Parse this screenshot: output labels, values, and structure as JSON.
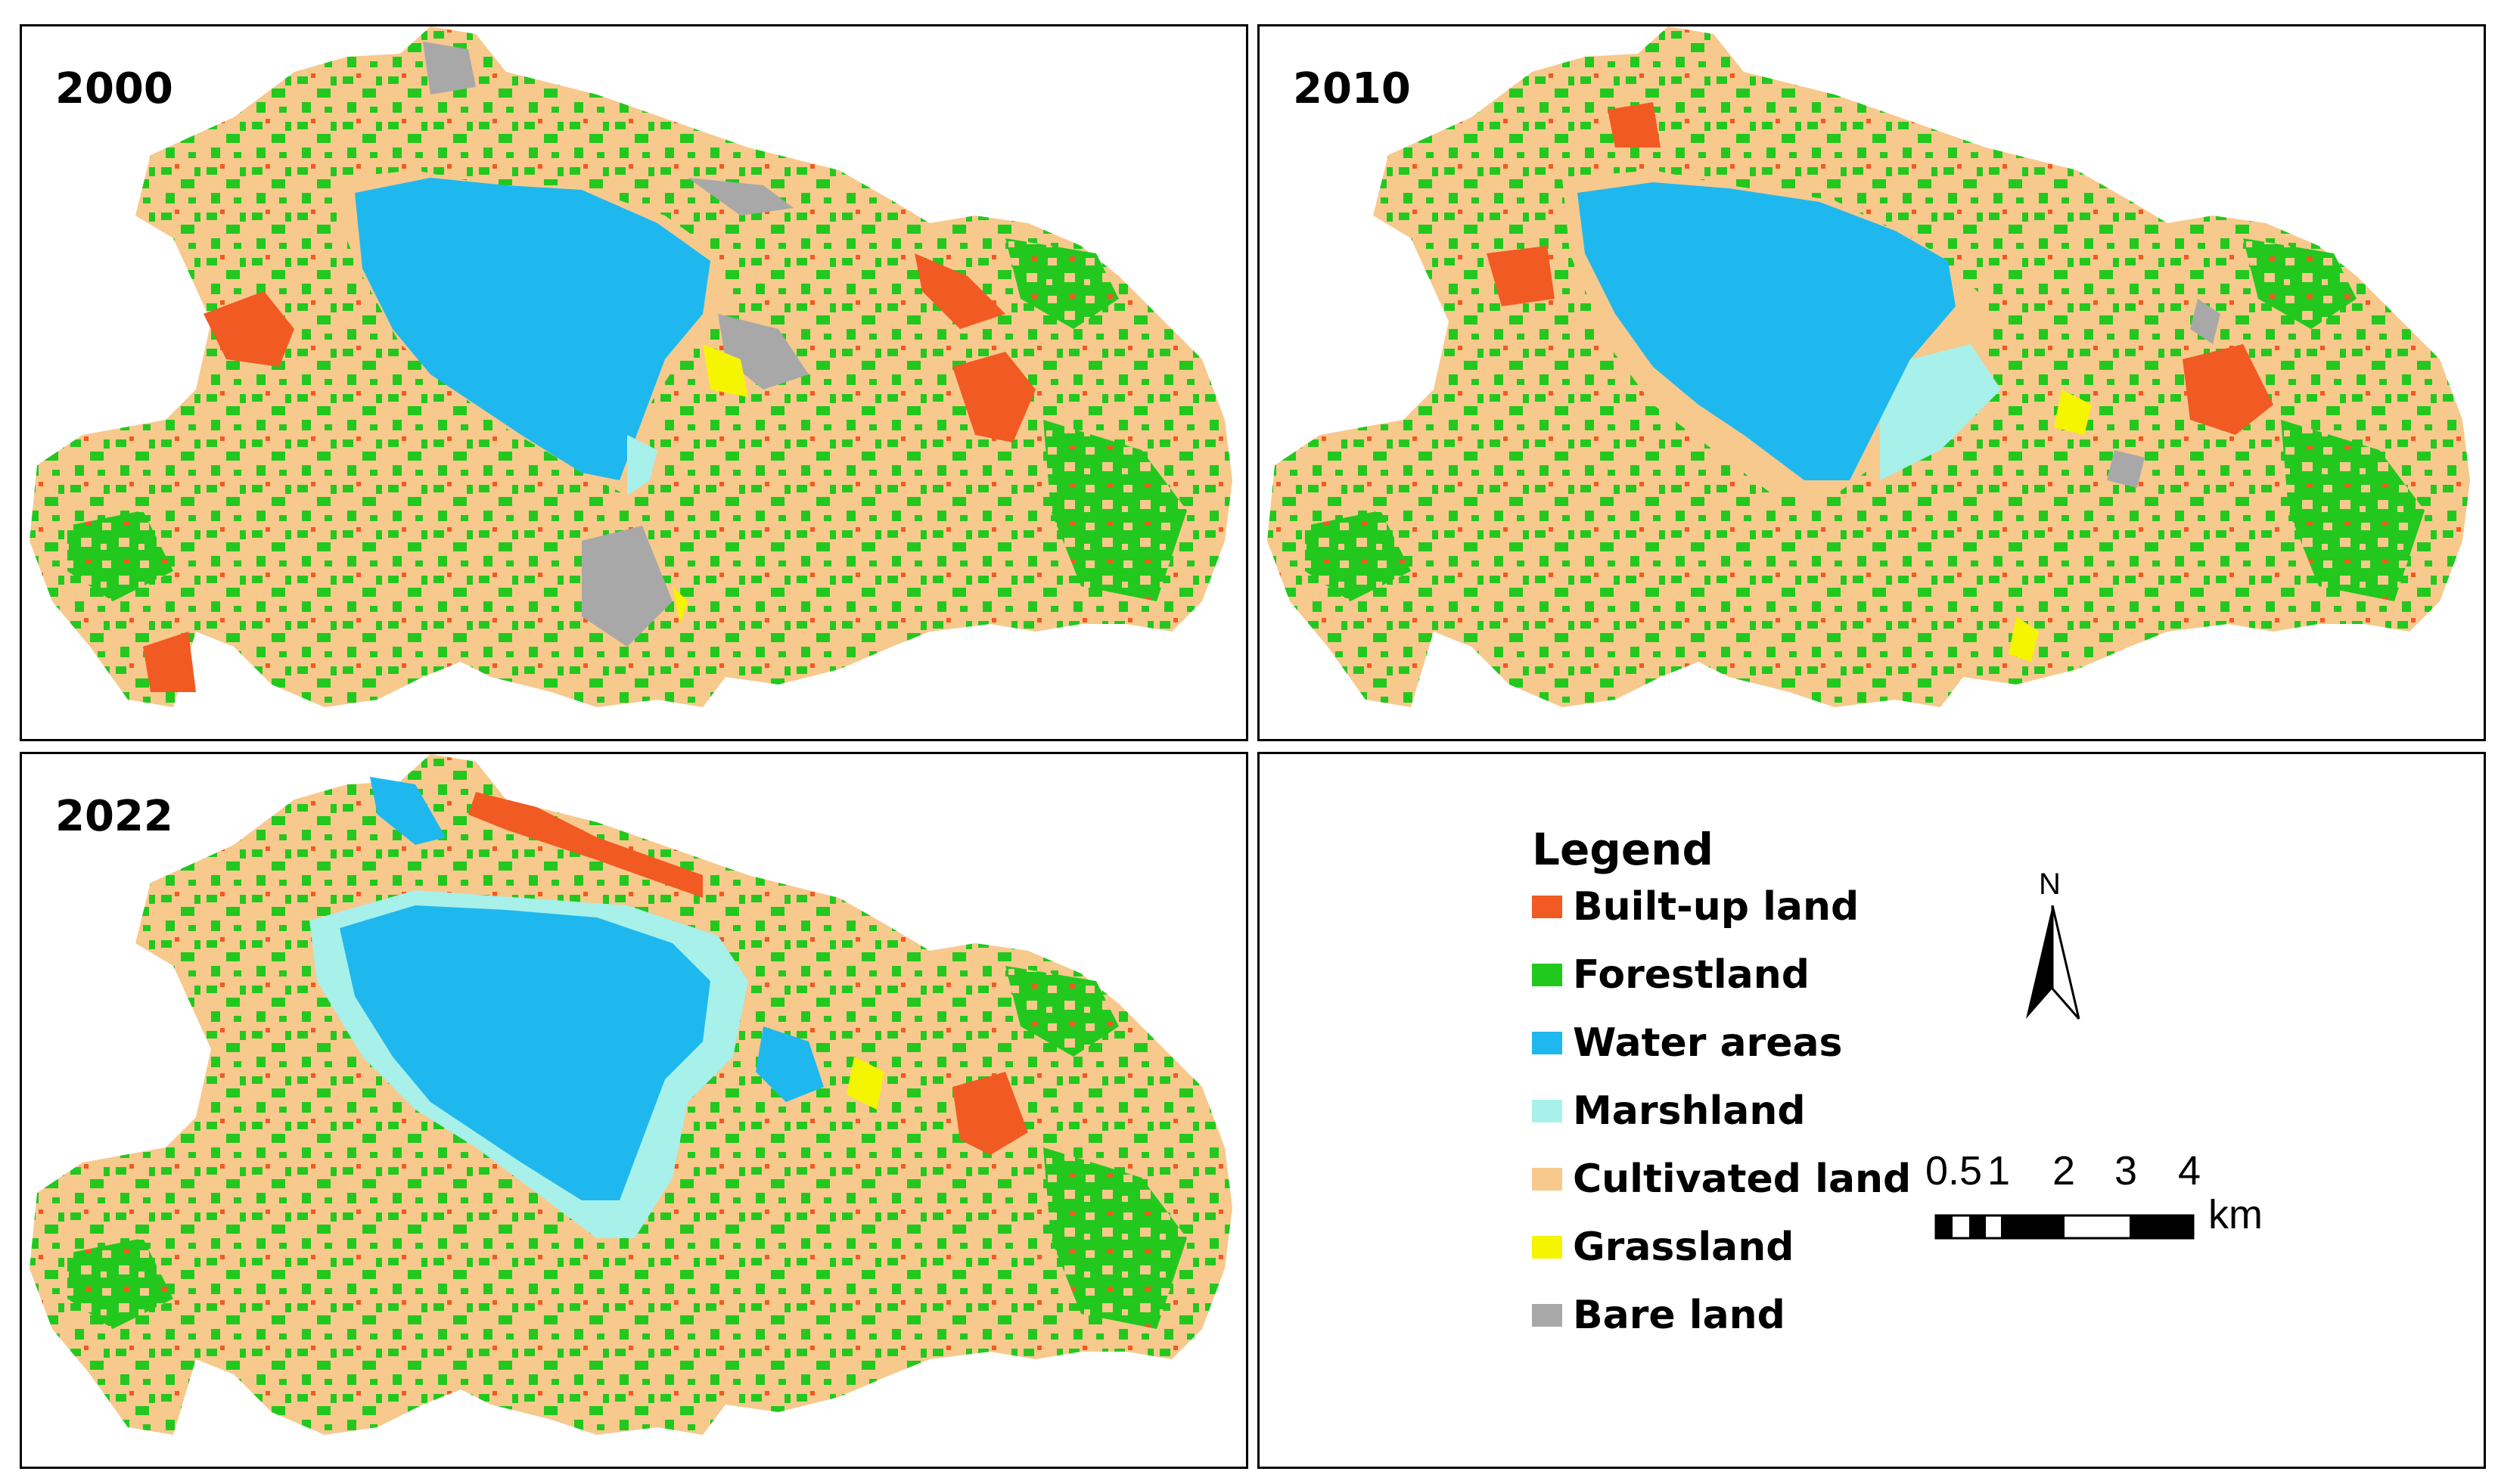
{
  "panels": [
    {
      "year": "2000"
    },
    {
      "year": "2010"
    },
    {
      "year": "2022"
    }
  ],
  "legend": {
    "title": "Legend",
    "items": [
      {
        "label": "Built-up land",
        "color": "#F15A22"
      },
      {
        "label": "Forestland",
        "color": "#22C81E"
      },
      {
        "label": "Water areas",
        "color": "#1FB8EE"
      },
      {
        "label": "Marshland",
        "color": "#A8F0EA"
      },
      {
        "label": "Cultivated land",
        "color": "#F7C98D"
      },
      {
        "label": "Grassland",
        "color": "#F5F500"
      },
      {
        "label": "Bare land",
        "color": "#A8A8A8"
      }
    ]
  },
  "north_arrow": {
    "label": "N"
  },
  "scale_bar": {
    "ticks": [
      "0",
      ".5",
      "1",
      "2",
      "3",
      "4"
    ],
    "unit": "km"
  }
}
